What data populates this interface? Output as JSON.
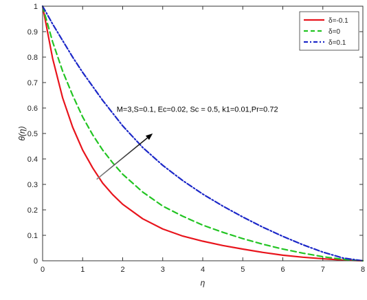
{
  "chart_data": {
    "type": "line",
    "xlabel": "η",
    "ylabel": "θ(η)",
    "xlim": [
      0,
      8
    ],
    "ylim": [
      0,
      1
    ],
    "xticks": [
      0,
      1,
      2,
      3,
      4,
      5,
      6,
      7,
      8
    ],
    "yticks": [
      0,
      0.1,
      0.2,
      0.3,
      0.4,
      0.5,
      0.6,
      0.7,
      0.8,
      0.9,
      1
    ],
    "grid": false,
    "legend_position": "top-right",
    "annotation": "M=3,S=0.1, Ec=0.02, Sc = 0.5, k1=0.01,Pr=0.72",
    "series": [
      {
        "name": "δ=-0.1",
        "color": "#e8141c",
        "style": "solid",
        "x": [
          0,
          0.25,
          0.5,
          0.75,
          1,
          1.25,
          1.5,
          1.75,
          2,
          2.5,
          3,
          3.5,
          4,
          4.5,
          5,
          5.5,
          6,
          6.5,
          7,
          7.5,
          8
        ],
        "values": [
          1,
          0.795,
          0.64,
          0.525,
          0.435,
          0.365,
          0.305,
          0.26,
          0.222,
          0.165,
          0.125,
          0.097,
          0.077,
          0.06,
          0.046,
          0.033,
          0.022,
          0.014,
          0.008,
          0.003,
          0
        ]
      },
      {
        "name": "δ=0",
        "color": "#22c422",
        "style": "dashed",
        "x": [
          0,
          0.25,
          0.5,
          0.75,
          1,
          1.25,
          1.5,
          1.75,
          2,
          2.5,
          3,
          3.5,
          4,
          4.5,
          5,
          5.5,
          6,
          6.5,
          7,
          7.5,
          8
        ],
        "values": [
          1,
          0.86,
          0.745,
          0.65,
          0.565,
          0.495,
          0.435,
          0.385,
          0.34,
          0.27,
          0.215,
          0.175,
          0.14,
          0.112,
          0.087,
          0.065,
          0.046,
          0.03,
          0.016,
          0.006,
          0
        ]
      },
      {
        "name": "δ=0.1",
        "color": "#1c28c8",
        "style": "dashdot",
        "x": [
          0,
          0.25,
          0.5,
          0.75,
          1,
          1.25,
          1.5,
          1.75,
          2,
          2.5,
          3,
          3.5,
          4,
          4.5,
          5,
          5.5,
          6,
          6.5,
          7,
          7.5,
          8
        ],
        "values": [
          1,
          0.93,
          0.865,
          0.8,
          0.74,
          0.685,
          0.63,
          0.58,
          0.53,
          0.445,
          0.375,
          0.315,
          0.262,
          0.215,
          0.172,
          0.132,
          0.096,
          0.063,
          0.034,
          0.011,
          0
        ]
      }
    ],
    "arrow": {
      "from": [
        1.35,
        0.32
      ],
      "to": [
        2.75,
        0.5
      ],
      "color_start": "#888888",
      "color_end": "#000000"
    }
  }
}
